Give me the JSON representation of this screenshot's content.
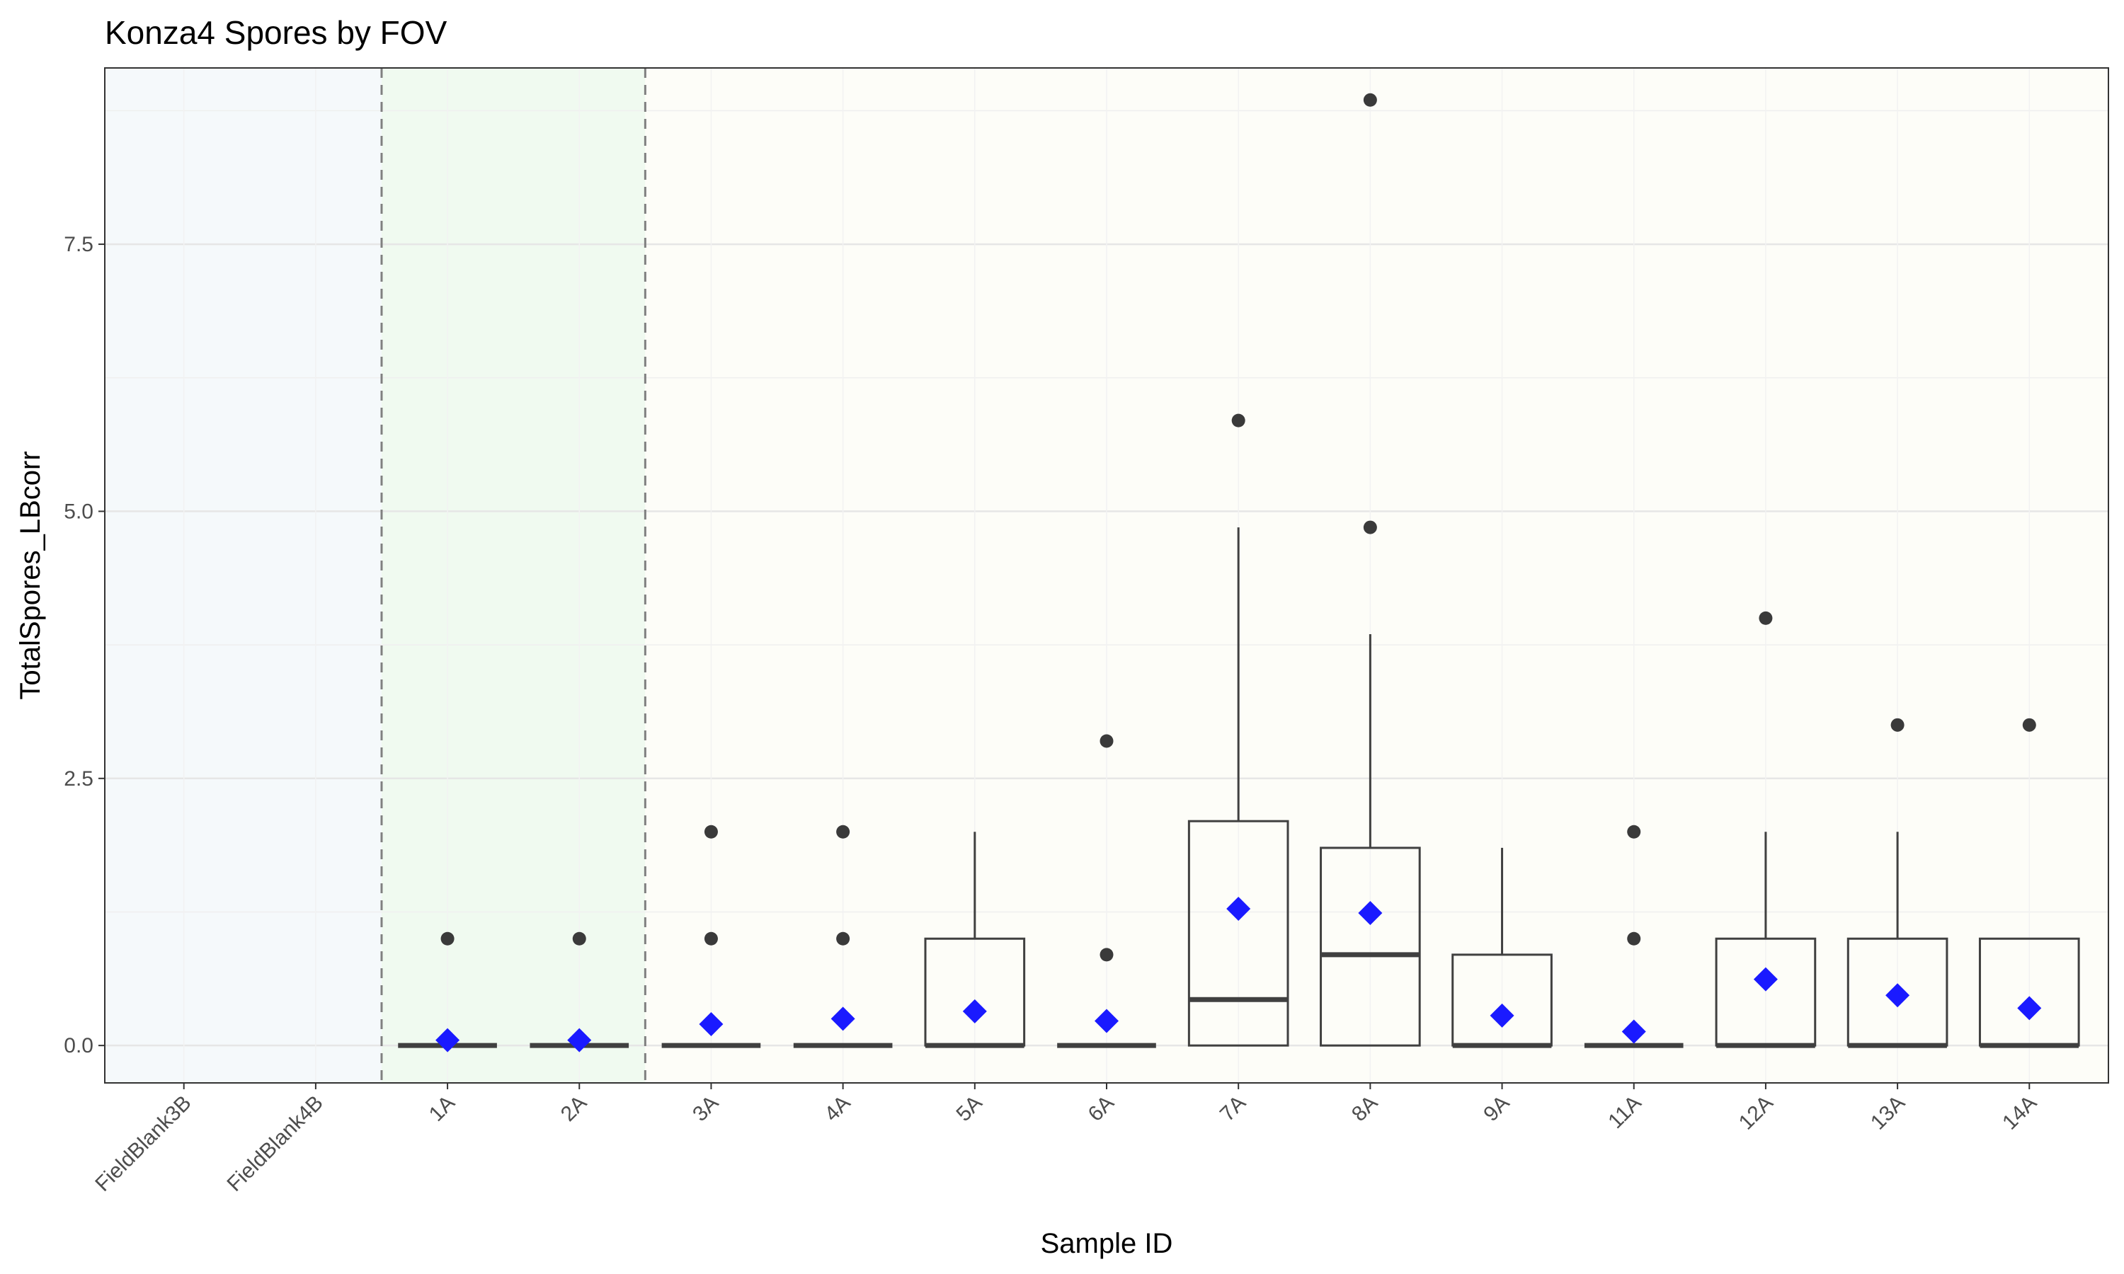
{
  "chart_data": {
    "type": "box",
    "title": "Konza4 Spores by FOV",
    "xlabel": "Sample ID",
    "ylabel": "TotalSpores_LBcorr",
    "ylim": [
      -0.35,
      9.15
    ],
    "y_ticks": [
      "0.0",
      "2.5",
      "5.0",
      "7.5"
    ],
    "y_tick_values": [
      0,
      2.5,
      5,
      7.5
    ],
    "grid": true,
    "categories": [
      "FieldBlank3B",
      "FieldBlank4B",
      "1A",
      "2A",
      "3A",
      "4A",
      "5A",
      "6A",
      "7A",
      "8A",
      "9A",
      "11A",
      "12A",
      "13A",
      "14A"
    ],
    "regions": [
      {
        "from_index": 0,
        "to_index": 1,
        "color": "#f5f9fb"
      },
      {
        "from_index": 2,
        "to_index": 3,
        "color": "#f0faf0"
      },
      {
        "from_index": 4,
        "to_index": 14,
        "color": "#fdfdf8"
      }
    ],
    "boxes": [
      null,
      null,
      {
        "q1": 0,
        "median": 0,
        "q3": 0,
        "whisker_low": 0,
        "whisker_high": 0,
        "mean": 0.05,
        "outliers": [
          1
        ]
      },
      {
        "q1": 0,
        "median": 0,
        "q3": 0,
        "whisker_low": 0,
        "whisker_high": 0,
        "mean": 0.05,
        "outliers": [
          1
        ]
      },
      {
        "q1": 0,
        "median": 0,
        "q3": 0,
        "whisker_low": 0,
        "whisker_high": 0,
        "mean": 0.2,
        "outliers": [
          1,
          2
        ]
      },
      {
        "q1": 0,
        "median": 0,
        "q3": 0,
        "whisker_low": 0,
        "whisker_high": 0,
        "mean": 0.25,
        "outliers": [
          1,
          2
        ]
      },
      {
        "q1": 0,
        "median": 0,
        "q3": 1,
        "whisker_low": 0,
        "whisker_high": 2,
        "mean": 0.32,
        "outliers": []
      },
      {
        "q1": 0,
        "median": 0,
        "q3": 0,
        "whisker_low": 0,
        "whisker_high": 0,
        "mean": 0.23,
        "outliers": [
          0.85,
          2.85
        ]
      },
      {
        "q1": 0,
        "median": 0.43,
        "q3": 2.1,
        "whisker_low": 0,
        "whisker_high": 4.85,
        "mean": 1.28,
        "outliers": [
          5.85
        ]
      },
      {
        "q1": 0,
        "median": 0.85,
        "q3": 1.85,
        "whisker_low": 0,
        "whisker_high": 3.85,
        "mean": 1.24,
        "outliers": [
          4.85,
          8.85
        ]
      },
      {
        "q1": 0,
        "median": 0,
        "q3": 0.85,
        "whisker_low": 0,
        "whisker_high": 1.85,
        "mean": 0.28,
        "outliers": []
      },
      {
        "q1": 0,
        "median": 0,
        "q3": 0,
        "whisker_low": 0,
        "whisker_high": 0,
        "mean": 0.13,
        "outliers": [
          1,
          2
        ]
      },
      {
        "q1": 0,
        "median": 0,
        "q3": 1,
        "whisker_low": 0,
        "whisker_high": 2,
        "mean": 0.62,
        "outliers": [
          4
        ]
      },
      {
        "q1": 0,
        "median": 0,
        "q3": 1,
        "whisker_low": 0,
        "whisker_high": 2,
        "mean": 0.47,
        "outliers": [
          3
        ]
      },
      {
        "q1": 0,
        "median": 0,
        "q3": 1,
        "whisker_low": 0,
        "whisker_high": 1,
        "mean": 0.35,
        "outliers": [
          3
        ]
      }
    ],
    "colors": {
      "box_line": "#404040",
      "outlier": "#3a3a3a",
      "mean_marker": "#1a1aff",
      "grid": "#e6e6e6",
      "divider": "#808080",
      "panel_border": "#333333"
    }
  }
}
